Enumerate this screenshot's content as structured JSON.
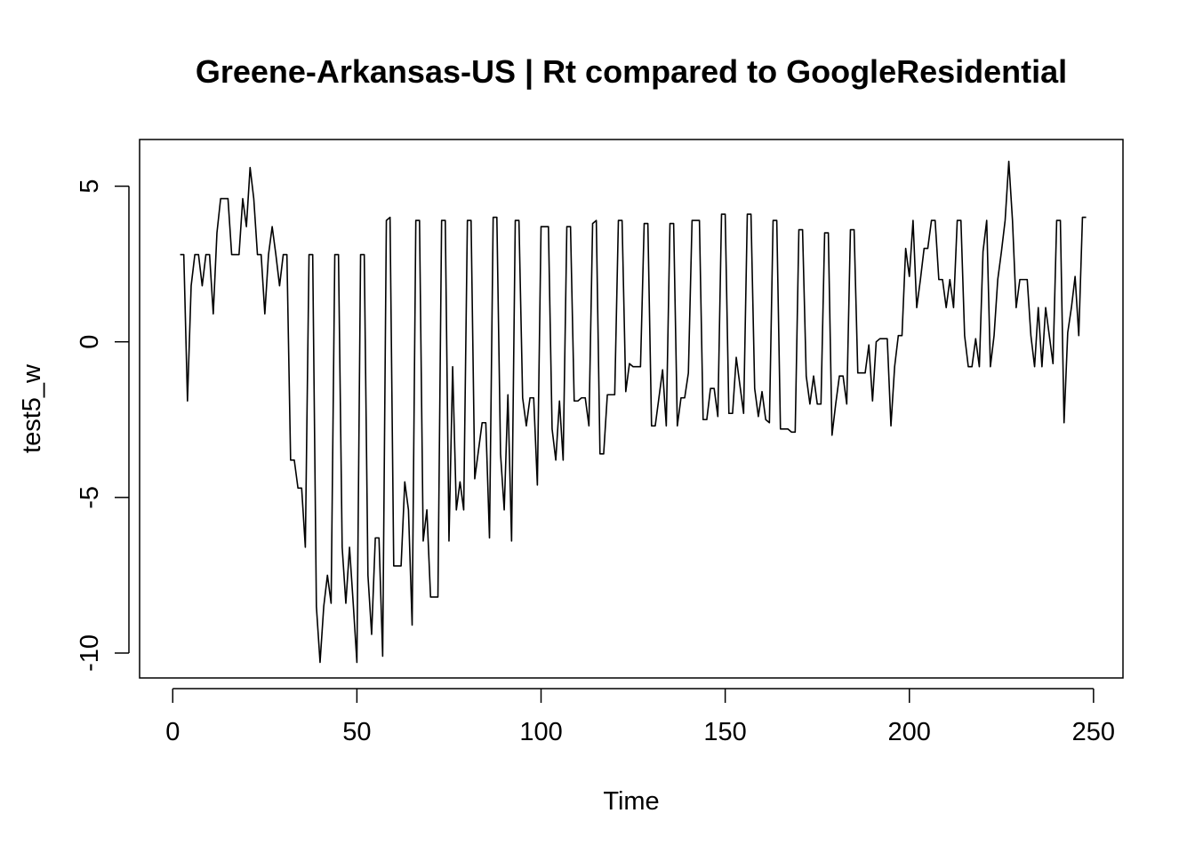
{
  "chart_data": {
    "type": "line",
    "title": "Greene-Arkansas-US | Rt compared to GoogleResidential",
    "xlabel": "Time",
    "ylabel": "test5_w",
    "xlim": [
      -9,
      258
    ],
    "ylim": [
      -10.8,
      6.5
    ],
    "xticks": [
      0,
      50,
      100,
      150,
      200,
      250
    ],
    "yticks": [
      -10,
      -5,
      0,
      5
    ],
    "grid": false,
    "legend": "none",
    "line_color": "#000000",
    "series": [
      {
        "x_start": 2,
        "values": [
          2.8,
          2.8,
          -1.9,
          1.8,
          2.8,
          2.8,
          1.8,
          2.8,
          2.8,
          0.9,
          3.5,
          4.6,
          4.6,
          4.6,
          2.8,
          2.8,
          2.8,
          4.6,
          3.7,
          5.6,
          4.6,
          2.8,
          2.8,
          0.9,
          2.8,
          3.7,
          2.8,
          1.8,
          2.8,
          2.8,
          -3.8,
          -3.8,
          -4.7,
          -4.7,
          -6.6,
          2.8,
          2.8,
          -8.5,
          -10.3,
          -8.5,
          -7.5,
          -8.4,
          2.8,
          2.8,
          -6.6,
          -8.4,
          -6.6,
          -8.4,
          -10.3,
          2.8,
          2.8,
          -7.5,
          -9.4,
          -6.3,
          -6.3,
          -10.1,
          3.9,
          4.0,
          -7.2,
          -7.2,
          -7.2,
          -4.5,
          -5.4,
          -9.1,
          3.9,
          3.9,
          -6.4,
          -5.4,
          -8.2,
          -8.2,
          -8.2,
          3.9,
          3.9,
          -6.4,
          -0.8,
          -5.4,
          -4.5,
          -5.4,
          3.9,
          3.9,
          -4.4,
          -3.5,
          -2.6,
          -2.6,
          -6.3,
          4.0,
          4.0,
          -3.6,
          -5.4,
          -1.7,
          -6.4,
          3.9,
          3.9,
          -1.8,
          -2.7,
          -1.8,
          -1.8,
          -4.6,
          3.7,
          3.7,
          3.7,
          -2.8,
          -3.8,
          -1.9,
          -3.8,
          3.7,
          3.7,
          -1.9,
          -1.9,
          -1.8,
          -1.8,
          -2.7,
          3.8,
          3.9,
          -3.6,
          -3.6,
          -1.7,
          -1.7,
          -1.7,
          3.9,
          3.9,
          -1.6,
          -0.7,
          -0.8,
          -0.8,
          -0.8,
          3.8,
          3.8,
          -2.7,
          -2.7,
          -1.8,
          -0.9,
          -2.7,
          3.8,
          3.8,
          -2.7,
          -1.8,
          -1.8,
          -1.0,
          3.9,
          3.9,
          3.9,
          -2.5,
          -2.5,
          -1.5,
          -1.5,
          -2.4,
          4.1,
          4.1,
          -2.3,
          -2.3,
          -0.5,
          -1.4,
          -2.3,
          4.1,
          4.1,
          -1.5,
          -2.4,
          -1.6,
          -2.5,
          -2.6,
          3.9,
          3.9,
          -2.8,
          -2.8,
          -2.8,
          -2.9,
          -2.9,
          3.6,
          3.6,
          -1.1,
          -2.0,
          -1.1,
          -2.0,
          -2.0,
          3.5,
          3.5,
          -3.0,
          -2.0,
          -1.1,
          -1.1,
          -2.0,
          3.6,
          3.6,
          -1.0,
          -1.0,
          -1.0,
          -0.1,
          -1.9,
          0.0,
          0.1,
          0.1,
          0.1,
          -2.7,
          -0.8,
          0.2,
          0.2,
          3.0,
          2.1,
          3.9,
          1.1,
          2.0,
          3.0,
          3.0,
          3.9,
          3.9,
          2.0,
          2.0,
          1.1,
          2.0,
          1.1,
          3.9,
          3.9,
          0.2,
          -0.8,
          -0.8,
          0.1,
          -0.8,
          2.9,
          3.9,
          -0.8,
          0.2,
          2.0,
          2.9,
          3.9,
          5.8,
          3.9,
          1.1,
          2.0,
          2.0,
          2.0,
          0.2,
          -0.8,
          1.1,
          -0.8,
          1.1,
          0.2,
          -0.7,
          3.9,
          3.9,
          -2.6,
          0.3,
          1.1,
          2.1,
          0.2,
          4.0,
          4.0
        ]
      }
    ]
  }
}
